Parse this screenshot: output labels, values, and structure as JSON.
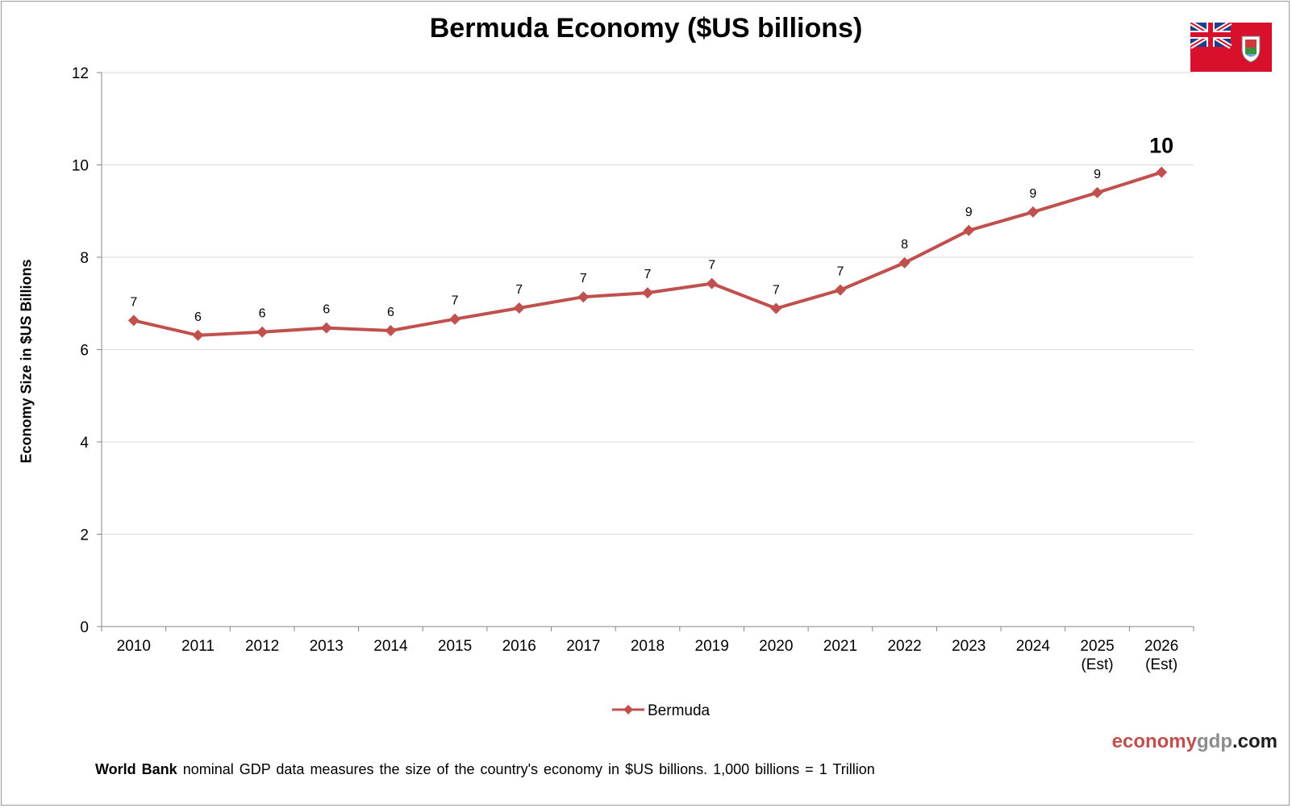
{
  "title": "Bermuda Economy ($US billions)",
  "brand": {
    "part1": "economy",
    "part2": "gdp",
    "part3": ".com"
  },
  "footnote": {
    "bold": "World Bank",
    "text": " nominal GDP data  measures the size of the country's economy in $US billions. 1,000 billions = 1 Trillion"
  },
  "colors": {
    "series": "#c0504d",
    "grid": "#d9d9d9",
    "axis": "#868686",
    "brand_red": "#c0504d",
    "brand_grey": "#8c8c8c"
  },
  "flag": {
    "icon": "bermuda-flag-icon"
  },
  "chart_data": {
    "type": "line",
    "ylabel": "Economy Size in $US Billions",
    "xlabel": "",
    "ylim": [
      0,
      12
    ],
    "yticks": [
      0,
      2,
      4,
      6,
      8,
      10,
      12
    ],
    "grid": true,
    "legend_position": "bottom",
    "categories": [
      [
        "2010"
      ],
      [
        "2011"
      ],
      [
        "2012"
      ],
      [
        "2013"
      ],
      [
        "2014"
      ],
      [
        "2015"
      ],
      [
        "2016"
      ],
      [
        "2017"
      ],
      [
        "2018"
      ],
      [
        "2019"
      ],
      [
        "2020"
      ],
      [
        "2021"
      ],
      [
        "2022"
      ],
      [
        "2023"
      ],
      [
        "2024"
      ],
      [
        "2025",
        "(Est)"
      ],
      [
        "2026",
        "(Est)"
      ]
    ],
    "series": [
      {
        "name": "Bermuda",
        "values": [
          6.63,
          6.31,
          6.38,
          6.47,
          6.41,
          6.66,
          6.9,
          7.14,
          7.23,
          7.43,
          6.89,
          7.29,
          7.88,
          8.58,
          8.98,
          9.4,
          9.84
        ],
        "labels": [
          "7",
          "6",
          "6",
          "6",
          "6",
          "7",
          "7",
          "7",
          "7",
          "7",
          "7",
          "7",
          "8",
          "9",
          "9",
          "9",
          "10"
        ]
      }
    ]
  }
}
